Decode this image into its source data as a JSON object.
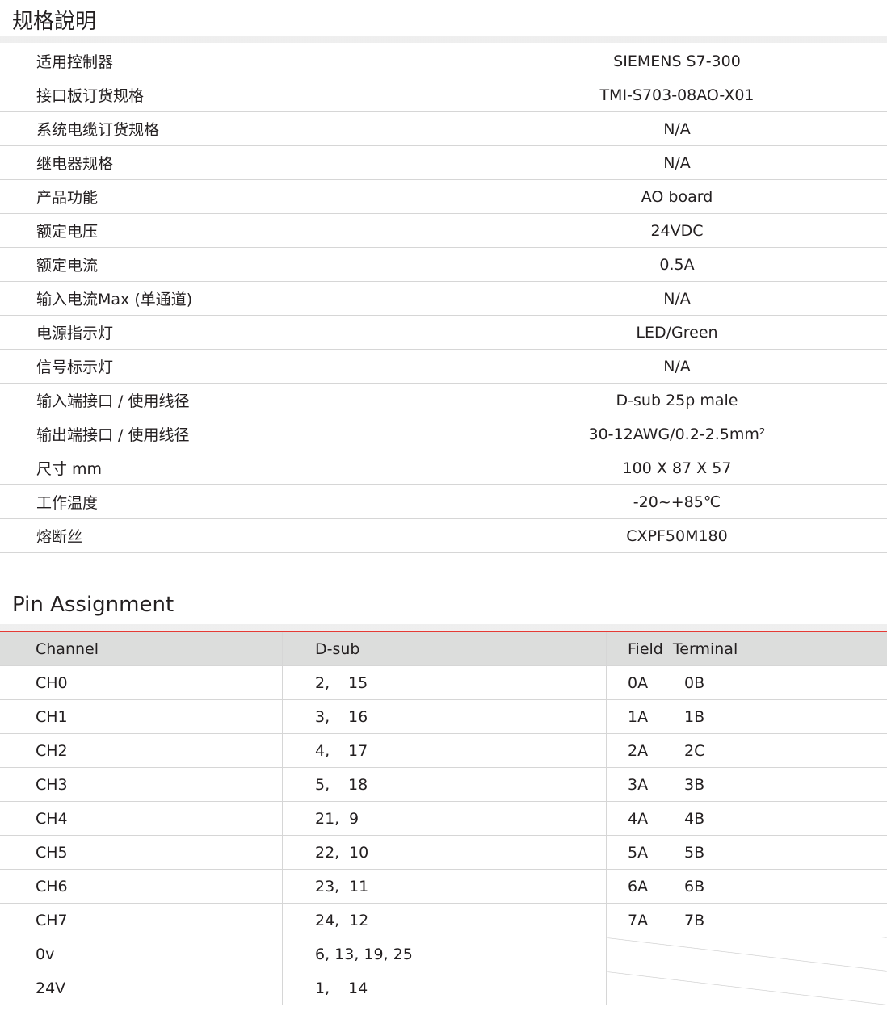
{
  "spec": {
    "title": "规格說明",
    "rows": [
      [
        "适用控制器",
        "SIEMENS S7-300"
      ],
      [
        "接口板订货规格",
        "TMI-S703-08AO-X01"
      ],
      [
        "系统电缆订货规格",
        "N/A"
      ],
      [
        "继电器规格",
        "N/A"
      ],
      [
        "产品功能",
        "AO board"
      ],
      [
        "额定电压",
        "24VDC"
      ],
      [
        "额定电流",
        "0.5A"
      ],
      [
        "输入电流Max (单通道)",
        "N/A"
      ],
      [
        "电源指示灯",
        "LED/Green"
      ],
      [
        "信号标示灯",
        "N/A"
      ],
      [
        "输入端接口 / 使用线径",
        "D-sub 25p male"
      ],
      [
        "输出端接口 / 使用线径",
        "30-12AWG/0.2-2.5mm²"
      ],
      [
        "尺寸 mm",
        "100 X 87 X 57"
      ],
      [
        "工作温度",
        "-20~+85℃"
      ],
      [
        "熔断丝",
        "CXPF50M180"
      ]
    ]
  },
  "pin": {
    "title": "Pin Assignment",
    "headers": [
      "Channel",
      "D-sub",
      "Field  Terminal"
    ],
    "rows": [
      {
        "ch": "CH0",
        "d1": "2,",
        "d2": "15",
        "f1": "0A",
        "f2": "0B"
      },
      {
        "ch": "CH1",
        "d1": "3,",
        "d2": "16",
        "f1": "1A",
        "f2": "1B"
      },
      {
        "ch": "CH2",
        "d1": "4,",
        "d2": "17",
        "f1": "2A",
        "f2": "2C"
      },
      {
        "ch": "CH3",
        "d1": "5,",
        "d2": "18",
        "f1": "3A",
        "f2": "3B"
      },
      {
        "ch": "CH4",
        "d1": "21,",
        "d2": "9",
        "f1": "4A",
        "f2": "4B"
      },
      {
        "ch": "CH5",
        "d1": "22,",
        "d2": "10",
        "f1": "5A",
        "f2": "5B"
      },
      {
        "ch": "CH6",
        "d1": "23,",
        "d2": "11",
        "f1": "6A",
        "f2": "6B"
      },
      {
        "ch": "CH7",
        "d1": "24,",
        "d2": "12",
        "f1": "7A",
        "f2": "7B"
      },
      {
        "ch": "0v",
        "d1": "6, 13, 19, 25",
        "d2": "",
        "f1": null,
        "f2": null
      },
      {
        "ch": "24V",
        "d1": "1,",
        "d2": "14",
        "f1": null,
        "f2": null
      }
    ]
  }
}
